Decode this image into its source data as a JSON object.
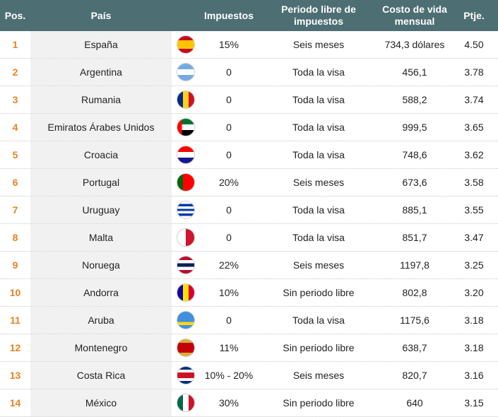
{
  "table": {
    "header": [
      "Pos.",
      "País",
      "Impuestos",
      "Periodo libre de impuestos",
      "Costo de vida mensual",
      "Ptje."
    ],
    "rows": [
      [
        "1",
        "España",
        "15%",
        "Seis meses",
        "734,3 dólares",
        "4.50"
      ],
      [
        "2",
        "Argentina",
        "0",
        "Toda la visa",
        "456,1",
        "3.78"
      ],
      [
        "3",
        "Rumania",
        "0",
        "Toda la visa",
        "588,2",
        "3.74"
      ],
      [
        "4",
        "Emiratos Árabes Unidos",
        "0",
        "Toda la visa",
        "999,5",
        "3.65"
      ],
      [
        "5",
        "Croacia",
        "0",
        "Toda la visa",
        "748,6",
        "3.62"
      ],
      [
        "6",
        "Portugal",
        "20%",
        "Seis meses",
        "673,6",
        "3.58"
      ],
      [
        "7",
        "Uruguay",
        "0",
        "Toda la visa",
        "885,1",
        "3.55"
      ],
      [
        "8",
        "Malta",
        "0",
        "Toda la visa",
        "851,7",
        "3.47"
      ],
      [
        "9",
        "Noruega",
        "22%",
        "Seis meses",
        "1197,8",
        "3.25"
      ],
      [
        "10",
        "Andorra",
        "10%",
        "Sin periodo libre",
        "802,8",
        "3.20"
      ],
      [
        "11",
        "Aruba",
        "0",
        "Toda la visa",
        "1175,6",
        "3.18"
      ],
      [
        "12",
        "Montenegro",
        "11%",
        "Sin periodo libre",
        "638,7",
        "3.18"
      ],
      [
        "13",
        "Costa Rica",
        "10% - 20%",
        "Seis meses",
        "820,7",
        "3.16"
      ],
      [
        "14",
        "México",
        "30%",
        "Sin periodo libre",
        "640",
        "3.15"
      ]
    ]
  }
}
